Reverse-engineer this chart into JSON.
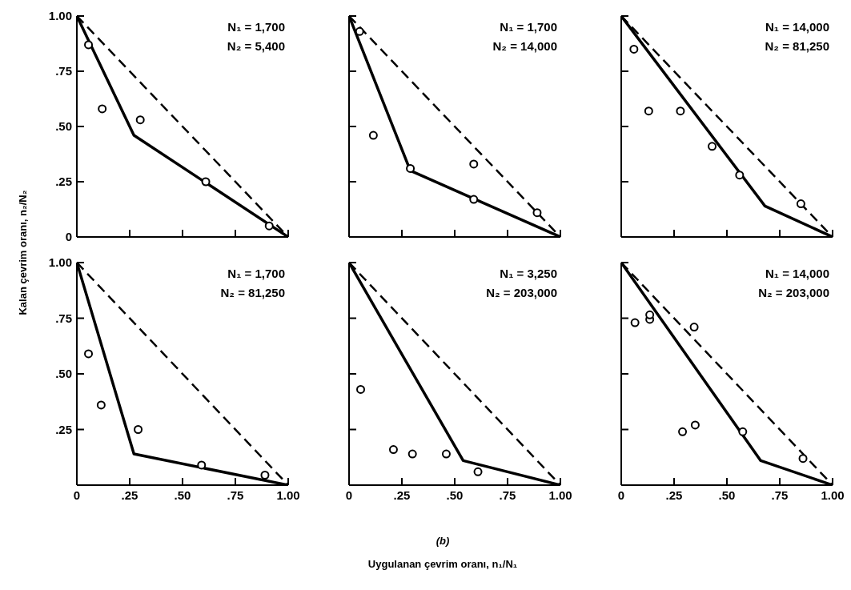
{
  "chart_data": [
    {
      "type": "scatter",
      "ylabel": "Kalan çevrim oranı, n₂/N₂",
      "xlim": [
        0,
        1
      ],
      "ylim": [
        0,
        1
      ],
      "xticks": [
        {
          "value": 0.25,
          "label": null
        },
        {
          "value": 0.5,
          "label": null
        },
        {
          "value": 0.75,
          "label": null
        },
        {
          "value": 1,
          "label": null
        }
      ],
      "yticks": [
        0,
        {
          "value": 0.25,
          "label": ".25"
        },
        {
          "value": 0.5,
          "label": ".50"
        },
        {
          "value": 0.75,
          "label": ".75"
        },
        {
          "value": 1,
          "label": "1.00"
        }
      ],
      "tick_labels": "y",
      "marker": "circle",
      "annotations": [
        "N₁ = 1,700",
        "N₂ = 5,400"
      ],
      "series": [
        {
          "type": "scatter",
          "color": "#000000",
          "x": [
            0.055,
            0.12,
            0.3,
            0.61,
            0.91
          ],
          "values": [
            0.87,
            0.58,
            0.53,
            0.25,
            0.05
          ]
        },
        {
          "type": "line",
          "color": "#000000",
          "marker": "none",
          "line_style": "solid",
          "x": [
            0,
            0.27,
            1
          ],
          "values": [
            1,
            0.46,
            0
          ]
        },
        {
          "type": "line",
          "color": "#000000",
          "marker": "none",
          "line_style": "dashed",
          "x": [
            0,
            1
          ],
          "values": [
            1,
            0
          ]
        }
      ]
    },
    {
      "type": "scatter",
      "xlim": [
        0,
        1
      ],
      "ylim": [
        0,
        1
      ],
      "xticks": [
        {
          "value": 0.25,
          "label": null
        },
        {
          "value": 0.5,
          "label": null
        },
        {
          "value": 0.75,
          "label": null
        },
        {
          "value": 1,
          "label": null
        }
      ],
      "yticks": [
        {
          "value": 0.25,
          "label": null
        },
        {
          "value": 0.5,
          "label": null
        },
        {
          "value": 0.75,
          "label": null
        },
        {
          "value": 1,
          "label": null
        }
      ],
      "tick_labels": false,
      "marker": "circle",
      "annotations": [
        "N₁ = 1,700",
        "N₂ = 14,000"
      ],
      "series": [
        {
          "type": "scatter",
          "color": "#000000",
          "x": [
            0.05,
            0.115,
            0.29,
            0.59,
            0.59,
            0.89
          ],
          "values": [
            0.93,
            0.46,
            0.31,
            0.33,
            0.17,
            0.11
          ]
        },
        {
          "type": "line",
          "color": "#000000",
          "marker": "none",
          "line_style": "solid",
          "x": [
            0,
            0.29,
            1
          ],
          "values": [
            1,
            0.3,
            0
          ]
        },
        {
          "type": "line",
          "color": "#000000",
          "marker": "none",
          "line_style": "dashed",
          "x": [
            0,
            1
          ],
          "values": [
            1,
            0
          ]
        }
      ]
    },
    {
      "type": "scatter",
      "xlim": [
        0,
        1
      ],
      "ylim": [
        0,
        1
      ],
      "xticks": [
        {
          "value": 0.25,
          "label": null
        },
        {
          "value": 0.5,
          "label": null
        },
        {
          "value": 0.75,
          "label": null
        },
        {
          "value": 1,
          "label": null
        }
      ],
      "yticks": [
        {
          "value": 0.25,
          "label": null
        },
        {
          "value": 0.5,
          "label": null
        },
        {
          "value": 0.75,
          "label": null
        },
        {
          "value": 1,
          "label": null
        }
      ],
      "tick_labels": false,
      "marker": "circle",
      "annotations": [
        "N₁ = 14,000",
        "N₂ = 81,250"
      ],
      "series": [
        {
          "type": "scatter",
          "color": "#000000",
          "x": [
            0.06,
            0.13,
            0.28,
            0.43,
            0.56,
            0.85
          ],
          "values": [
            0.85,
            0.57,
            0.57,
            0.41,
            0.28,
            0.15
          ]
        },
        {
          "type": "line",
          "color": "#000000",
          "marker": "none",
          "line_style": "solid",
          "x": [
            0,
            0.68,
            1
          ],
          "values": [
            1,
            0.14,
            0
          ]
        },
        {
          "type": "line",
          "color": "#000000",
          "marker": "none",
          "line_style": "dashed",
          "x": [
            0,
            1
          ],
          "values": [
            1,
            0
          ]
        }
      ]
    },
    {
      "type": "scatter",
      "xlim": [
        0,
        1
      ],
      "ylim": [
        0,
        1
      ],
      "xticks": [
        {
          "value": 0,
          "label": "0"
        },
        {
          "value": 0.25,
          "label": ".25"
        },
        {
          "value": 0.5,
          "label": ".50"
        },
        {
          "value": 0.75,
          "label": ".75"
        },
        {
          "value": 1,
          "label": "1.00"
        }
      ],
      "yticks": [
        {
          "value": 0.25,
          "label": ".25"
        },
        {
          "value": 0.5,
          "label": ".50"
        },
        {
          "value": 0.75,
          "label": ".75"
        },
        {
          "value": 1,
          "label": "1.00"
        }
      ],
      "marker": "circle",
      "annotations": [
        "N₁ = 1,700",
        "N₂ = 81,250"
      ],
      "series": [
        {
          "type": "scatter",
          "color": "#000000",
          "x": [
            0.055,
            0.115,
            0.29,
            0.59,
            0.89
          ],
          "values": [
            0.59,
            0.36,
            0.25,
            0.09,
            0.045
          ]
        },
        {
          "type": "line",
          "color": "#000000",
          "marker": "none",
          "line_style": "solid",
          "x": [
            0,
            0.27,
            1
          ],
          "values": [
            1,
            0.14,
            0
          ]
        },
        {
          "type": "line",
          "color": "#000000",
          "marker": "none",
          "line_style": "dashed",
          "x": [
            0,
            1
          ],
          "values": [
            1,
            0
          ]
        }
      ]
    },
    {
      "type": "scatter",
      "xlabel": "Uygulanan çevrim oranı, n₁/N₁",
      "xlim": [
        0,
        1
      ],
      "ylim": [
        0,
        1
      ],
      "xticks": [
        {
          "value": 0,
          "label": "0"
        },
        {
          "value": 0.25,
          "label": ".25"
        },
        {
          "value": 0.5,
          "label": ".50"
        },
        {
          "value": 0.75,
          "label": ".75"
        },
        {
          "value": 1,
          "label": "1.00"
        }
      ],
      "yticks": [
        {
          "value": 0.25,
          "label": null
        },
        {
          "value": 0.5,
          "label": null
        },
        {
          "value": 0.75,
          "label": null
        },
        {
          "value": 1,
          "label": null
        }
      ],
      "tick_labels": "x",
      "marker": "circle",
      "annotations": [
        "N₁ = 3,250",
        "N₂ = 203,000",
        "(b)"
      ],
      "series": [
        {
          "type": "scatter",
          "color": "#000000",
          "x": [
            0.055,
            0.21,
            0.3,
            0.46,
            0.61
          ],
          "values": [
            0.43,
            0.16,
            0.14,
            0.14,
            0.06
          ]
        },
        {
          "type": "line",
          "color": "#000000",
          "marker": "none",
          "line_style": "solid",
          "x": [
            0,
            0.54,
            1
          ],
          "values": [
            1,
            0.11,
            0
          ]
        },
        {
          "type": "line",
          "color": "#000000",
          "marker": "none",
          "line_style": "dashed",
          "x": [
            0,
            1
          ],
          "values": [
            1,
            0
          ]
        }
      ]
    },
    {
      "type": "scatter",
      "xlim": [
        0,
        1
      ],
      "ylim": [
        0,
        1
      ],
      "xticks": [
        {
          "value": 0,
          "label": "0"
        },
        {
          "value": 0.25,
          "label": ".25"
        },
        {
          "value": 0.5,
          "label": ".50"
        },
        {
          "value": 0.75,
          "label": ".75"
        },
        {
          "value": 1,
          "label": "1.00"
        }
      ],
      "yticks": [
        {
          "value": 0.25,
          "label": null
        },
        {
          "value": 0.5,
          "label": null
        },
        {
          "value": 0.75,
          "label": null
        },
        {
          "value": 1,
          "label": null
        }
      ],
      "tick_labels": "x",
      "marker": "circle",
      "annotations": [
        "N₁ = 14,000",
        "N₂ = 203,000"
      ],
      "series": [
        {
          "type": "scatter",
          "color": "#000000",
          "x": [
            0.065,
            0.135,
            0.135,
            0.345,
            0.29,
            0.35,
            0.575,
            0.86
          ],
          "values": [
            0.73,
            0.745,
            0.765,
            0.71,
            0.24,
            0.27,
            0.24,
            0.12
          ]
        },
        {
          "type": "line",
          "color": "#000000",
          "marker": "none",
          "line_style": "solid",
          "x": [
            0,
            0.66,
            1
          ],
          "values": [
            1,
            0.11,
            0
          ]
        },
        {
          "type": "line",
          "color": "#000000",
          "marker": "none",
          "line_style": "dashed",
          "x": [
            0,
            1
          ],
          "values": [
            1,
            0
          ]
        }
      ]
    }
  ]
}
